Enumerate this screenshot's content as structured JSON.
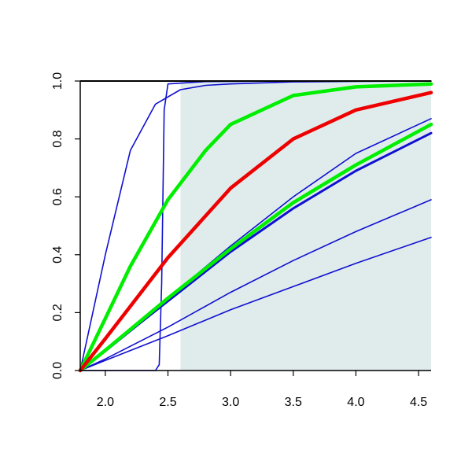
{
  "chart_data": {
    "type": "line",
    "title": "",
    "xlabel": "",
    "ylabel": "",
    "xlim": [
      1.8,
      4.6
    ],
    "ylim": [
      0.0,
      1.0
    ],
    "xticks": [
      "2.0",
      "2.5",
      "3.0",
      "3.5",
      "4.0",
      "4.5"
    ],
    "yticks": [
      "0.0",
      "0.2",
      "0.4",
      "0.6",
      "0.8",
      "1.0"
    ],
    "grid": false,
    "shaded_region": {
      "x_from": 2.6,
      "x_to": 4.6,
      "y_from": 0.0,
      "y_to": 1.0,
      "color": "#e0ecec"
    },
    "series": [
      {
        "color": "#1010d0",
        "width": 1.6,
        "x": [
          1.8,
          2.0,
          2.2,
          2.4,
          2.6,
          2.8,
          3.0,
          3.5,
          4.0,
          4.6
        ],
        "y": [
          0.0,
          0.4,
          0.76,
          0.92,
          0.97,
          0.985,
          0.99,
          0.997,
          0.999,
          1.0
        ]
      },
      {
        "color": "#1010d0",
        "width": 1.6,
        "x": [
          1.8,
          2.4,
          2.43,
          2.45,
          2.47,
          2.5,
          2.8,
          3.5,
          4.6
        ],
        "y": [
          0.0,
          0.0,
          0.02,
          0.3,
          0.9,
          0.99,
          0.998,
          1.0,
          1.0
        ]
      },
      {
        "color": "#1010d0",
        "width": 1.6,
        "x": [
          1.8,
          2.0,
          2.5,
          3.0,
          3.5,
          4.0,
          4.6
        ],
        "y": [
          0.0,
          0.07,
          0.25,
          0.43,
          0.6,
          0.75,
          0.87
        ]
      },
      {
        "color": "#1010d0",
        "width": 1.6,
        "x": [
          1.8,
          2.0,
          2.5,
          3.0,
          3.5,
          4.0,
          4.6
        ],
        "y": [
          0.0,
          0.065,
          0.24,
          0.41,
          0.56,
          0.69,
          0.82
        ]
      },
      {
        "color": "#1010d0",
        "width": 3.0,
        "x": [
          1.8,
          2.0,
          2.5,
          3.0,
          3.5,
          4.0,
          4.6
        ],
        "y": [
          0.0,
          0.07,
          0.24,
          0.41,
          0.56,
          0.69,
          0.82
        ]
      },
      {
        "color": "#1010d0",
        "width": 1.6,
        "x": [
          1.8,
          2.0,
          2.5,
          3.0,
          3.5,
          4.0,
          4.6
        ],
        "y": [
          0.0,
          0.04,
          0.15,
          0.27,
          0.38,
          0.48,
          0.59
        ]
      },
      {
        "color": "#1010d0",
        "width": 1.6,
        "x": [
          1.8,
          2.0,
          2.5,
          3.0,
          3.5,
          4.0,
          4.6
        ],
        "y": [
          0.0,
          0.035,
          0.12,
          0.21,
          0.29,
          0.37,
          0.46
        ]
      },
      {
        "color": "#00ee00",
        "width": 4.5,
        "x": [
          1.8,
          2.0,
          2.2,
          2.5,
          2.8,
          3.0,
          3.5,
          4.0,
          4.6
        ],
        "y": [
          0.0,
          0.18,
          0.36,
          0.59,
          0.76,
          0.85,
          0.95,
          0.98,
          0.99
        ]
      },
      {
        "color": "#00ee00",
        "width": 4.5,
        "x": [
          1.8,
          2.0,
          2.5,
          3.0,
          3.5,
          4.0,
          4.6
        ],
        "y": [
          0.0,
          0.07,
          0.25,
          0.42,
          0.58,
          0.71,
          0.85
        ]
      },
      {
        "color": "#ee0000",
        "width": 4.5,
        "x": [
          1.8,
          2.0,
          2.5,
          3.0,
          3.5,
          4.0,
          4.6
        ],
        "y": [
          0.0,
          0.11,
          0.39,
          0.63,
          0.8,
          0.9,
          0.96
        ]
      }
    ]
  }
}
